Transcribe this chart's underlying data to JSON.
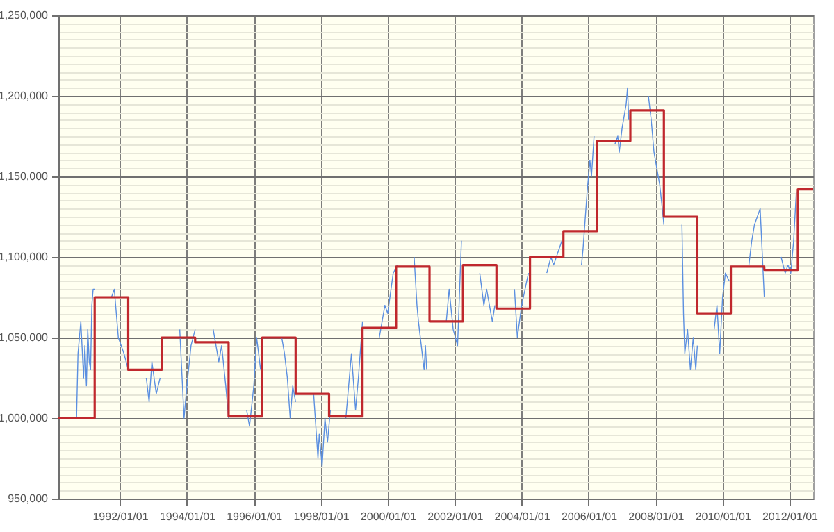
{
  "chart_data": {
    "type": "line",
    "grid": true,
    "marker": "none",
    "line_style": "solid",
    "xlim": [
      "1990-03-01",
      "2012-09-15"
    ],
    "xticks": [
      {
        "value": "1992-01-01",
        "label": "1992/01/01"
      },
      {
        "value": "1994-01-01",
        "label": "1994/01/01"
      },
      {
        "value": "1996-01-01",
        "label": "1996/01/01"
      },
      {
        "value": "1998-01-01",
        "label": "1998/01/01"
      },
      {
        "value": "2000-01-01",
        "label": "2000/01/01"
      },
      {
        "value": "2002-01-01",
        "label": "2002/01/01"
      },
      {
        "value": "2004-01-01",
        "label": "2004/01/01"
      },
      {
        "value": "2006-01-01",
        "label": "2006/01/01"
      },
      {
        "value": "2008-01-01",
        "label": "2008/01/01"
      },
      {
        "value": "2010-01-01",
        "label": "2010/01/01"
      },
      {
        "value": "2012-01-01",
        "label": "2012/01/01"
      }
    ],
    "ylim": [
      950000,
      1250000
    ],
    "yticks": [
      {
        "value": 950000,
        "label": "950,000"
      },
      {
        "value": 955000,
        "label": null
      },
      {
        "value": 960000,
        "label": null
      },
      {
        "value": 965000,
        "label": null
      },
      {
        "value": 970000,
        "label": null
      },
      {
        "value": 975000,
        "label": null
      },
      {
        "value": 980000,
        "label": null
      },
      {
        "value": 985000,
        "label": null
      },
      {
        "value": 990000,
        "label": null
      },
      {
        "value": 995000,
        "label": null
      },
      {
        "value": 1000000,
        "label": "1,000,000"
      },
      {
        "value": 1005000,
        "label": null
      },
      {
        "value": 1010000,
        "label": null
      },
      {
        "value": 1015000,
        "label": null
      },
      {
        "value": 1020000,
        "label": null
      },
      {
        "value": 1025000,
        "label": null
      },
      {
        "value": 1030000,
        "label": null
      },
      {
        "value": 1035000,
        "label": null
      },
      {
        "value": 1040000,
        "label": null
      },
      {
        "value": 1045000,
        "label": null
      },
      {
        "value": 1050000,
        "label": "1,050,000"
      },
      {
        "value": 1055000,
        "label": null
      },
      {
        "value": 1060000,
        "label": null
      },
      {
        "value": 1065000,
        "label": null
      },
      {
        "value": 1070000,
        "label": null
      },
      {
        "value": 1075000,
        "label": null
      },
      {
        "value": 1080000,
        "label": null
      },
      {
        "value": 1085000,
        "label": null
      },
      {
        "value": 1090000,
        "label": null
      },
      {
        "value": 1095000,
        "label": null
      },
      {
        "value": 1100000,
        "label": "1,100,000"
      },
      {
        "value": 1105000,
        "label": null
      },
      {
        "value": 1110000,
        "label": null
      },
      {
        "value": 1115000,
        "label": null
      },
      {
        "value": 1120000,
        "label": null
      },
      {
        "value": 1125000,
        "label": null
      },
      {
        "value": 1130000,
        "label": null
      },
      {
        "value": 1135000,
        "label": null
      },
      {
        "value": 1140000,
        "label": null
      },
      {
        "value": 1145000,
        "label": null
      },
      {
        "value": 1150000,
        "label": "1,150,000"
      },
      {
        "value": 1155000,
        "label": null
      },
      {
        "value": 1160000,
        "label": null
      },
      {
        "value": 1165000,
        "label": null
      },
      {
        "value": 1170000,
        "label": null
      },
      {
        "value": 1175000,
        "label": null
      },
      {
        "value": 1180000,
        "label": null
      },
      {
        "value": 1185000,
        "label": null
      },
      {
        "value": 1190000,
        "label": null
      },
      {
        "value": 1195000,
        "label": null
      },
      {
        "value": 1200000,
        "label": "1,200,000"
      },
      {
        "value": 1205000,
        "label": null
      },
      {
        "value": 1210000,
        "label": null
      },
      {
        "value": 1215000,
        "label": null
      },
      {
        "value": 1220000,
        "label": null
      },
      {
        "value": 1225000,
        "label": null
      },
      {
        "value": 1230000,
        "label": null
      },
      {
        "value": 1235000,
        "label": null
      },
      {
        "value": 1240000,
        "label": null
      },
      {
        "value": 1245000,
        "label": null
      },
      {
        "value": 1250000,
        "label": "1,250,000"
      }
    ],
    "series": [
      {
        "type": "line",
        "color": "#5b8fe0",
        "x": [
          "1990-09-15",
          "1990-10-01",
          "1990-11-01",
          "1990-12-01",
          "1990-12-15",
          "1991-01-01",
          "1991-01-15",
          "1991-02-01",
          "1991-02-15",
          "1991-03-01",
          "1991-03-15",
          "1991-04-01",
          "1991-07-01",
          "1991-10-01",
          "1991-11-01",
          "1991-12-15",
          "1992-02-15",
          "1992-04-01",
          "1992-07-01",
          "1992-10-15",
          "1992-11-15",
          "1992-12-15",
          "1993-02-01",
          "1993-03-15",
          "1993-07-01",
          "1993-10-15",
          "1993-12-01",
          "1994-01-01",
          "1994-02-15",
          "1994-04-01",
          "1994-07-01",
          "1994-10-15",
          "1994-12-15",
          "1995-01-15",
          "1995-03-01",
          "1995-04-01",
          "1995-07-01",
          "1995-10-15",
          "1995-11-15",
          "1996-01-01",
          "1996-02-01",
          "1996-03-15",
          "1996-07-01",
          "1996-11-01",
          "1996-12-01",
          "1997-01-01",
          "1997-02-01",
          "1997-03-01",
          "1997-04-01",
          "1997-07-01",
          "1997-10-15",
          "1997-12-01",
          "1997-12-15",
          "1998-01-15",
          "1998-02-15",
          "1998-03-15",
          "1998-04-15",
          "1998-07-01",
          "1998-10-01",
          "1998-12-01",
          "1999-01-15",
          "1999-02-15",
          "1999-04-01",
          "1999-07-01",
          "1999-10-01",
          "1999-12-01",
          "2000-01-01",
          "2000-03-01",
          "2000-04-15",
          "2000-07-01",
          "2000-10-15",
          "2000-11-15",
          "2000-12-01",
          "2001-01-01",
          "2001-02-01",
          "2001-02-15",
          "2001-03-01",
          "2001-07-01",
          "2001-10-01",
          "2001-11-01",
          "2001-12-15",
          "2002-02-01",
          "2002-03-15",
          "2002-07-01",
          "2002-10-01",
          "2002-11-15",
          "2002-12-15",
          "2003-02-15",
          "2003-03-15",
          "2003-07-01",
          "2003-10-15",
          "2003-11-15",
          "2004-01-01",
          "2004-03-15",
          "2004-07-01",
          "2004-10-01",
          "2004-11-15",
          "2004-12-15",
          "2005-03-15",
          "2005-07-01",
          "2005-10-15",
          "2005-11-01",
          "2005-12-15",
          "2006-01-15",
          "2006-02-01",
          "2006-03-01",
          "2006-07-01",
          "2006-10-15",
          "2006-11-15",
          "2006-12-01",
          "2007-01-01",
          "2007-02-15",
          "2007-03-01",
          "2007-03-15",
          "2007-07-01",
          "2007-10-15",
          "2007-11-15",
          "2007-12-15",
          "2008-02-15",
          "2008-03-15",
          "2008-04-01",
          "2008-07-01",
          "2008-10-15",
          "2008-11-01",
          "2008-11-15",
          "2008-12-15",
          "2009-01-15",
          "2009-02-15",
          "2009-03-15",
          "2009-04-01",
          "2009-07-01",
          "2009-10-01",
          "2009-11-01",
          "2009-12-01",
          "2010-01-01",
          "2010-02-01",
          "2010-03-15",
          "2010-07-01",
          "2010-10-15",
          "2010-11-15",
          "2010-12-15",
          "2011-02-15",
          "2011-04-01",
          "2011-07-01",
          "2011-10-01",
          "2011-11-15",
          "2011-12-15",
          "2012-01-15",
          "2012-02-15",
          "2012-03-15"
        ],
        "values": [
          1000000,
          1040000,
          1060000,
          1025000,
          1045000,
          1020000,
          1055000,
          1035000,
          1030000,
          1070000,
          1080000,
          1080000,
          null,
          1075000,
          1080000,
          1050000,
          1040000,
          1030000,
          null,
          1025000,
          1010000,
          1035000,
          1015000,
          1025000,
          null,
          1055000,
          1000000,
          1020000,
          1045000,
          1055000,
          null,
          1055000,
          1035000,
          1045000,
          1020000,
          1000000,
          null,
          1005000,
          995000,
          1020000,
          1050000,
          1030000,
          null,
          1050000,
          1040000,
          1025000,
          1000000,
          1020000,
          1010000,
          null,
          1015000,
          975000,
          990000,
          970000,
          1000000,
          985000,
          1005000,
          null,
          1000000,
          1040000,
          1005000,
          1025000,
          1060000,
          null,
          1050000,
          1070000,
          1065000,
          1090000,
          1095000,
          null,
          1100000,
          1070000,
          1060000,
          1045000,
          1030000,
          1045000,
          1030000,
          null,
          1060000,
          1080000,
          1055000,
          1045000,
          1110000,
          null,
          1090000,
          1070000,
          1080000,
          1060000,
          1070000,
          null,
          1080000,
          1050000,
          1070000,
          1090000,
          null,
          1090000,
          1100000,
          1095000,
          1110000,
          null,
          1095000,
          1105000,
          1140000,
          1160000,
          1150000,
          1175000,
          null,
          1170000,
          1175000,
          1165000,
          1180000,
          1195000,
          1205000,
          1185000,
          null,
          1200000,
          1185000,
          1165000,
          1145000,
          1130000,
          1120000,
          null,
          1120000,
          1065000,
          1040000,
          1055000,
          1030000,
          1050000,
          1030000,
          1045000,
          null,
          1055000,
          1070000,
          1040000,
          1075000,
          1090000,
          1085000,
          null,
          1095000,
          1110000,
          1120000,
          1130000,
          1075000,
          null,
          1100000,
          1090000,
          1095000,
          1090000,
          1110000,
          1140000
        ]
      },
      {
        "type": "step",
        "color": "#c0282d",
        "x": [
          "1990-03-01",
          "1991-04-01",
          "1992-04-01",
          "1993-04-01",
          "1994-04-01",
          "1995-04-01",
          "1996-04-01",
          "1997-04-01",
          "1998-04-01",
          "1999-04-01",
          "2000-04-01",
          "2001-04-01",
          "2002-04-01",
          "2003-04-01",
          "2004-04-01",
          "2005-04-01",
          "2006-04-01",
          "2007-04-01",
          "2008-04-01",
          "2009-04-01",
          "2010-04-01",
          "2011-04-01",
          "2012-04-01",
          "2012-09-15"
        ],
        "values": [
          1000000,
          1075000,
          1030000,
          1050000,
          1047000,
          1001000,
          1050000,
          1015000,
          1001000,
          1056000,
          1094000,
          1060000,
          1095000,
          1068000,
          1100000,
          1116000,
          1172000,
          1191000,
          1125000,
          1065000,
          1094000,
          1092000,
          1142000,
          1142000
        ]
      }
    ]
  }
}
